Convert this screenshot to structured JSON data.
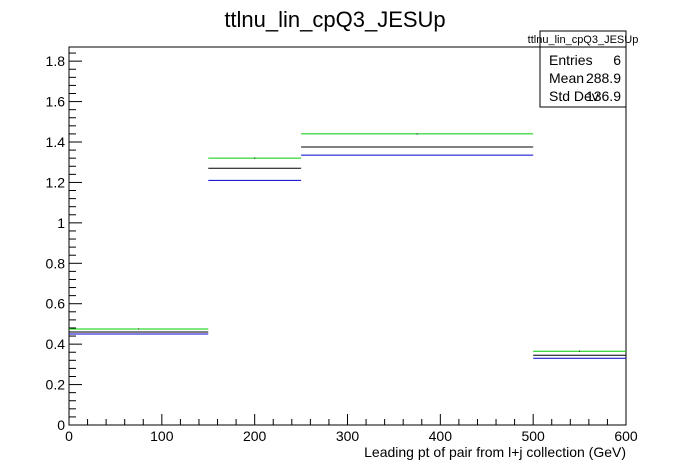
{
  "chart_data": {
    "type": "histogram-step",
    "title": "ttlnu_lin_cpQ3_JESUp",
    "xlabel": "Leading pt of pair from l+j collection (GeV)",
    "ylabel": "",
    "xlim": [
      0,
      600
    ],
    "ylim": [
      0,
      1.87
    ],
    "x_ticks": [
      0,
      100,
      200,
      300,
      400,
      500,
      600
    ],
    "y_ticks": [
      0,
      0.2,
      0.4,
      0.6,
      0.8,
      1,
      1.2,
      1.4,
      1.6,
      1.8
    ],
    "bin_edges": [
      0,
      150,
      250,
      500,
      600
    ],
    "series": [
      {
        "color": "#00cc00",
        "values": [
          0.475,
          1.32,
          1.44,
          0.365
        ]
      },
      {
        "color": "#000000",
        "values": [
          0.46,
          1.27,
          1.375,
          0.345
        ]
      },
      {
        "color": "#0000cc",
        "values": [
          0.45,
          1.21,
          1.335,
          0.33
        ]
      }
    ],
    "stats_box": {
      "title": "ttlnu_lin_cpQ3_JESUp",
      "rows": [
        {
          "label": "Entries",
          "value": "6"
        },
        {
          "label": "Mean",
          "value": "288.9"
        },
        {
          "label": "Std Dev",
          "value": "136.9"
        }
      ]
    },
    "grid": false,
    "legend": "none"
  }
}
